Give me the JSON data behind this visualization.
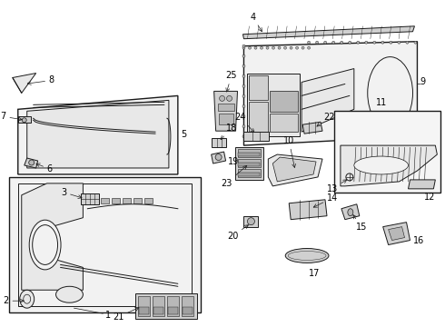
{
  "bg_color": "#ffffff",
  "lc": "#1a1a1a",
  "gray_fill": "#e8e8e8",
  "gray_med": "#d0d0d0",
  "gray_dark": "#b8b8b8",
  "gray_light": "#f2f2f2"
}
